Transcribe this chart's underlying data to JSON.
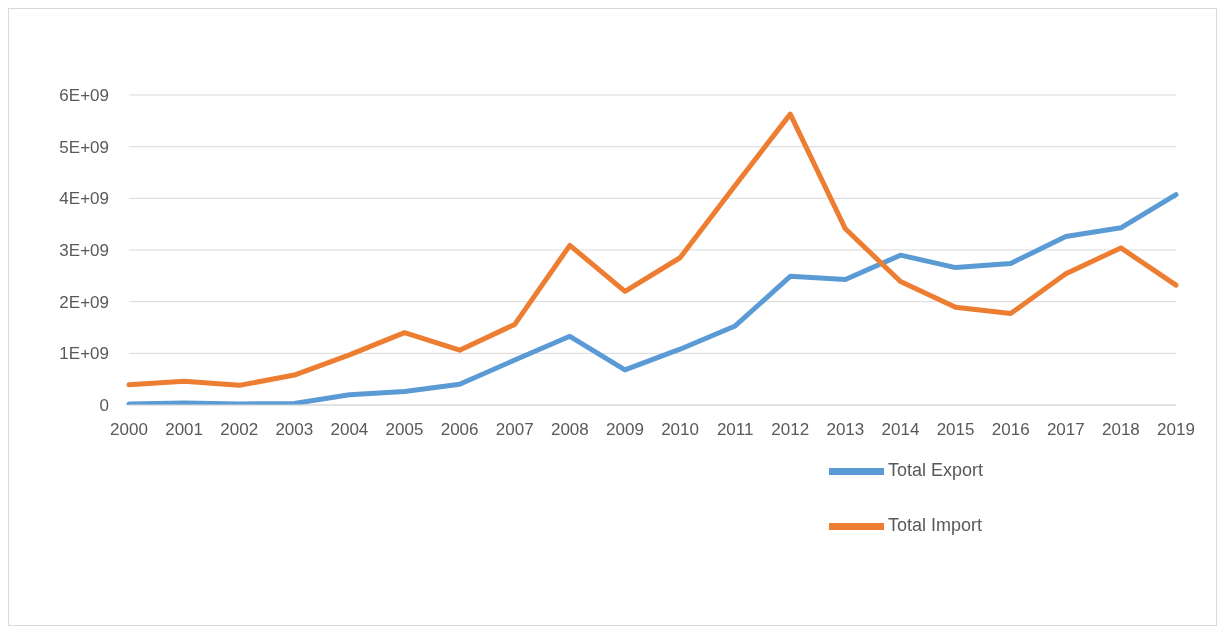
{
  "chart_data": {
    "type": "line",
    "categories": [
      "2000",
      "2001",
      "2002",
      "2003",
      "2004",
      "2005",
      "2006",
      "2007",
      "2008",
      "2009",
      "2010",
      "2011",
      "2012",
      "2013",
      "2014",
      "2015",
      "2016",
      "2017",
      "2018",
      "2019"
    ],
    "series": [
      {
        "name": "Total Export",
        "color": "#5b9bd5",
        "values": [
          20000000,
          40000000,
          20000000,
          30000000,
          200000000,
          260000000,
          400000000,
          870000000,
          1330000000,
          680000000,
          1080000000,
          1530000000,
          2490000000,
          2430000000,
          2900000000,
          2660000000,
          2740000000,
          3260000000,
          3430000000,
          4070000000
        ]
      },
      {
        "name": "Total Import",
        "color": "#ed7d31",
        "values": [
          390000000,
          460000000,
          380000000,
          580000000,
          970000000,
          1400000000,
          1060000000,
          1560000000,
          3090000000,
          2200000000,
          2850000000,
          4250000000,
          5630000000,
          3410000000,
          2390000000,
          1890000000,
          1770000000,
          2540000000,
          3040000000,
          2320000000
        ]
      }
    ],
    "ylim": [
      0,
      6000000000
    ],
    "yticks": [
      0,
      {
        "value": 1000000000,
        "label": "1E+09"
      },
      {
        "value": 2000000000,
        "label": "2E+09"
      },
      {
        "value": 3000000000,
        "label": "3E+09"
      },
      {
        "value": 4000000000,
        "label": "4E+09"
      },
      {
        "value": 5000000000,
        "label": "5E+09"
      },
      {
        "value": 6000000000,
        "label": "6E+09"
      }
    ],
    "grid": "y",
    "legend": "bottom right",
    "marker": "none",
    "line_style": "solid"
  }
}
